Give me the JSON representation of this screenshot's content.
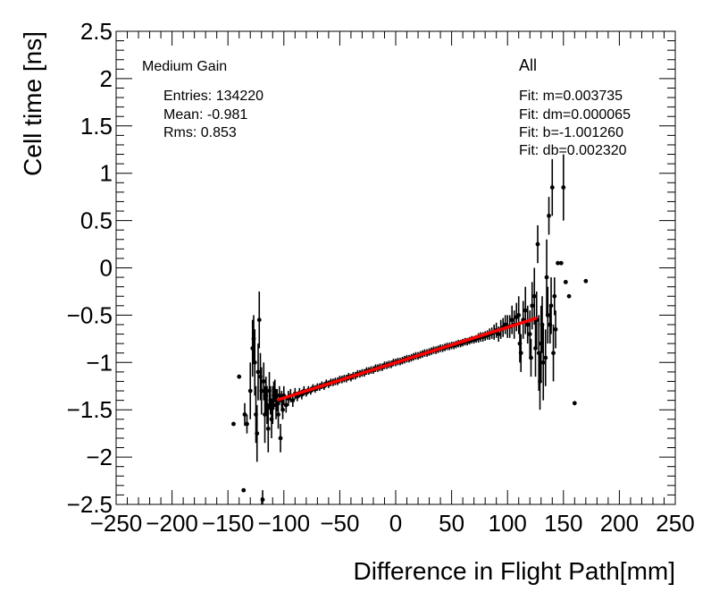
{
  "chart_data": {
    "type": "scatter",
    "title": "",
    "xlabel": "Difference in Flight Path[mm]",
    "ylabel": "Cell time [ns]",
    "xlim": [
      -250,
      250
    ],
    "ylim": [
      -2.5,
      2.5
    ],
    "x_ticks": [
      -250,
      -200,
      -150,
      -100,
      -50,
      0,
      50,
      100,
      150,
      200,
      250
    ],
    "x_tick_labels": [
      "−250",
      "−200",
      "−150",
      "−100",
      "−50",
      "0",
      "50",
      "100",
      "150",
      "200",
      "250"
    ],
    "y_ticks": [
      -2.5,
      -2,
      -1.5,
      -1,
      -0.5,
      0,
      0.5,
      1,
      1.5,
      2,
      2.5
    ],
    "y_tick_labels": [
      "−2.5",
      "−2",
      "−1.5",
      "−1",
      "−0.5",
      "0",
      "0.5",
      "1",
      "1.5",
      "2",
      "2.5"
    ],
    "grid": false,
    "series": [
      {
        "values": [
          [
            -145,
            -1.65,
            0
          ],
          [
            -140,
            -1.15,
            0
          ],
          [
            -136,
            -2.35,
            0
          ],
          [
            -135,
            -1.55,
            0.12
          ],
          [
            -133,
            -1.65,
            0.1
          ],
          [
            -130,
            -1.3,
            0.3
          ],
          [
            -128,
            -0.85,
            0.3
          ],
          [
            -127,
            -0.75,
            0.25
          ],
          [
            -126,
            -1.0,
            0.35
          ],
          [
            -125,
            -1.55,
            0.3
          ],
          [
            -124,
            -1.75,
            0.3
          ],
          [
            -123,
            -1.1,
            0.3
          ],
          [
            -122,
            -0.55,
            0.3
          ],
          [
            -121,
            -1.15,
            0.25
          ],
          [
            -120,
            -1.3,
            0.25
          ],
          [
            -119,
            -2.45,
            0.1
          ],
          [
            -118,
            -1.2,
            0.2
          ],
          [
            -117,
            -1.55,
            0.3
          ],
          [
            -116,
            -1.35,
            0.2
          ],
          [
            -115,
            -1.45,
            0.2
          ],
          [
            -114,
            -1.7,
            0.25
          ],
          [
            -113,
            -1.3,
            0.2
          ],
          [
            -112,
            -1.4,
            0.15
          ],
          [
            -111,
            -1.6,
            0.2
          ],
          [
            -110,
            -1.45,
            0.2
          ],
          [
            -109,
            -1.35,
            0.15
          ],
          [
            -108,
            -1.3,
            0.12
          ],
          [
            -107,
            -1.45,
            0.15
          ],
          [
            -106,
            -1.4,
            0.12
          ],
          [
            -105,
            -1.55,
            0.15
          ],
          [
            -104,
            -1.35,
            0.1
          ],
          [
            -103,
            -1.8,
            0.15
          ],
          [
            -102,
            -1.4,
            0.1
          ],
          [
            -101,
            -1.5,
            0.1
          ],
          [
            -100,
            -1.35,
            0.1
          ],
          [
            -98,
            -1.45,
            0.08
          ],
          [
            -96,
            -1.38,
            0.08
          ],
          [
            -94,
            -1.35,
            0.07
          ],
          [
            -92,
            -1.4,
            0.07
          ],
          [
            -90,
            -1.33,
            0.06
          ],
          [
            -88,
            -1.36,
            0.05
          ],
          [
            -86,
            -1.32,
            0.05
          ],
          [
            -84,
            -1.34,
            0.05
          ],
          [
            -82,
            -1.3,
            0.05
          ],
          [
            -80,
            -1.32,
            0.04
          ],
          [
            -78,
            -1.29,
            0.04
          ],
          [
            -76,
            -1.3,
            0.04
          ],
          [
            -74,
            -1.27,
            0.04
          ],
          [
            -72,
            -1.28,
            0.04
          ],
          [
            -70,
            -1.26,
            0.04
          ],
          [
            -68,
            -1.26,
            0.04
          ],
          [
            -66,
            -1.24,
            0.04
          ],
          [
            -64,
            -1.25,
            0.04
          ],
          [
            -62,
            -1.22,
            0.04
          ],
          [
            -60,
            -1.23,
            0.04
          ],
          [
            -58,
            -1.21,
            0.04
          ],
          [
            -56,
            -1.21,
            0.04
          ],
          [
            -54,
            -1.2,
            0.04
          ],
          [
            -52,
            -1.2,
            0.04
          ],
          [
            -50,
            -1.18,
            0.04
          ],
          [
            -48,
            -1.18,
            0.04
          ],
          [
            -46,
            -1.17,
            0.04
          ],
          [
            -44,
            -1.17,
            0.04
          ],
          [
            -42,
            -1.15,
            0.04
          ],
          [
            -40,
            -1.16,
            0.04
          ],
          [
            -38,
            -1.14,
            0.04
          ],
          [
            -36,
            -1.14,
            0.04
          ],
          [
            -34,
            -1.12,
            0.04
          ],
          [
            -32,
            -1.12,
            0.04
          ],
          [
            -30,
            -1.11,
            0.04
          ],
          [
            -28,
            -1.11,
            0.04
          ],
          [
            -26,
            -1.09,
            0.04
          ],
          [
            -24,
            -1.09,
            0.04
          ],
          [
            -22,
            -1.08,
            0.04
          ],
          [
            -20,
            -1.08,
            0.04
          ],
          [
            -18,
            -1.06,
            0.04
          ],
          [
            -16,
            -1.06,
            0.04
          ],
          [
            -14,
            -1.05,
            0.04
          ],
          [
            -12,
            -1.05,
            0.04
          ],
          [
            -10,
            -1.03,
            0.04
          ],
          [
            -8,
            -1.03,
            0.04
          ],
          [
            -6,
            -1.02,
            0.04
          ],
          [
            -4,
            -1.02,
            0.04
          ],
          [
            -2,
            -1.0,
            0.04
          ],
          [
            0,
            -1.0,
            0.04
          ],
          [
            2,
            -0.99,
            0.04
          ],
          [
            4,
            -0.99,
            0.04
          ],
          [
            6,
            -0.98,
            0.04
          ],
          [
            8,
            -0.97,
            0.04
          ],
          [
            10,
            -0.96,
            0.04
          ],
          [
            12,
            -0.96,
            0.04
          ],
          [
            14,
            -0.95,
            0.04
          ],
          [
            16,
            -0.94,
            0.04
          ],
          [
            18,
            -0.93,
            0.04
          ],
          [
            20,
            -0.93,
            0.04
          ],
          [
            22,
            -0.92,
            0.04
          ],
          [
            24,
            -0.91,
            0.04
          ],
          [
            26,
            -0.9,
            0.04
          ],
          [
            28,
            -0.9,
            0.04
          ],
          [
            30,
            -0.89,
            0.04
          ],
          [
            32,
            -0.88,
            0.04
          ],
          [
            34,
            -0.87,
            0.04
          ],
          [
            36,
            -0.87,
            0.04
          ],
          [
            38,
            -0.86,
            0.04
          ],
          [
            40,
            -0.85,
            0.04
          ],
          [
            42,
            -0.85,
            0.04
          ],
          [
            44,
            -0.84,
            0.04
          ],
          [
            46,
            -0.83,
            0.04
          ],
          [
            48,
            -0.83,
            0.04
          ],
          [
            50,
            -0.82,
            0.04
          ],
          [
            52,
            -0.82,
            0.04
          ],
          [
            54,
            -0.81,
            0.04
          ],
          [
            56,
            -0.8,
            0.04
          ],
          [
            58,
            -0.8,
            0.04
          ],
          [
            60,
            -0.79,
            0.04
          ],
          [
            62,
            -0.78,
            0.04
          ],
          [
            64,
            -0.78,
            0.04
          ],
          [
            66,
            -0.77,
            0.04
          ],
          [
            68,
            -0.76,
            0.04
          ],
          [
            70,
            -0.76,
            0.04
          ],
          [
            72,
            -0.75,
            0.04
          ],
          [
            74,
            -0.74,
            0.05
          ],
          [
            76,
            -0.73,
            0.05
          ],
          [
            78,
            -0.73,
            0.05
          ],
          [
            80,
            -0.72,
            0.05
          ],
          [
            82,
            -0.71,
            0.05
          ],
          [
            84,
            -0.7,
            0.06
          ],
          [
            86,
            -0.69,
            0.06
          ],
          [
            88,
            -0.68,
            0.08
          ],
          [
            90,
            -0.66,
            0.08
          ],
          [
            92,
            -0.7,
            0.08
          ],
          [
            94,
            -0.65,
            0.1
          ],
          [
            96,
            -0.63,
            0.1
          ],
          [
            98,
            -0.6,
            0.1
          ],
          [
            100,
            -0.62,
            0.12
          ],
          [
            102,
            -0.62,
            0.12
          ],
          [
            104,
            -0.55,
            0.15
          ],
          [
            106,
            -0.6,
            0.15
          ],
          [
            108,
            -0.52,
            0.15
          ],
          [
            110,
            -0.5,
            0.2
          ],
          [
            111,
            -0.8,
            0.2
          ],
          [
            112,
            -0.9,
            0.2
          ],
          [
            114,
            -0.55,
            0.2
          ],
          [
            116,
            -0.45,
            0.25
          ],
          [
            118,
            -0.6,
            0.2
          ],
          [
            120,
            -0.7,
            0.25
          ],
          [
            121,
            -0.95,
            0.2
          ],
          [
            122,
            -0.4,
            0.25
          ],
          [
            124,
            -0.3,
            0.3
          ],
          [
            125,
            -0.85,
            0.3
          ],
          [
            126,
            -0.55,
            0.3
          ],
          [
            127,
            0.25,
            0.2
          ],
          [
            128,
            -0.9,
            0.4
          ],
          [
            129,
            -1.2,
            0.3
          ],
          [
            130,
            -0.8,
            0.4
          ],
          [
            131,
            -0.6,
            0.3
          ],
          [
            132,
            -1.0,
            0.4
          ],
          [
            134,
            -0.95,
            0.3
          ],
          [
            135,
            -0.1,
            0.4
          ],
          [
            136,
            -0.5,
            0.3
          ],
          [
            137,
            0.55,
            0.2
          ],
          [
            138,
            -0.6,
            0.2
          ],
          [
            139,
            -0.4,
            0.3
          ],
          [
            140,
            0.85,
            0.3
          ],
          [
            141,
            -0.9,
            0.3
          ],
          [
            142,
            -0.3,
            0.2
          ],
          [
            143,
            -0.65,
            0.2
          ],
          [
            145,
            0.05,
            0
          ],
          [
            148,
            0.05,
            0
          ],
          [
            150,
            0.85,
            0.35
          ],
          [
            152,
            -0.15,
            0
          ],
          [
            155,
            -0.3,
            0
          ],
          [
            160,
            -1.43,
            0
          ],
          [
            170,
            -0.14,
            0
          ]
        ]
      },
      {
        "type": "line",
        "color": "#ff0000",
        "values": [
          [
            -105,
            -1.393
          ],
          [
            125,
            -0.534
          ]
        ]
      }
    ],
    "annotations": {
      "left_title": "Medium Gain",
      "stats": [
        "Entries: 134220",
        "Mean: -0.981",
        "Rms: 0.853"
      ],
      "right_title": "All",
      "fit": [
        "Fit: m=0.003735",
        "Fit: dm=0.000065",
        "Fit: b=-1.001260",
        "Fit: db=0.002320"
      ]
    },
    "point_color": "#000000",
    "fit_color": "#ff0000"
  }
}
